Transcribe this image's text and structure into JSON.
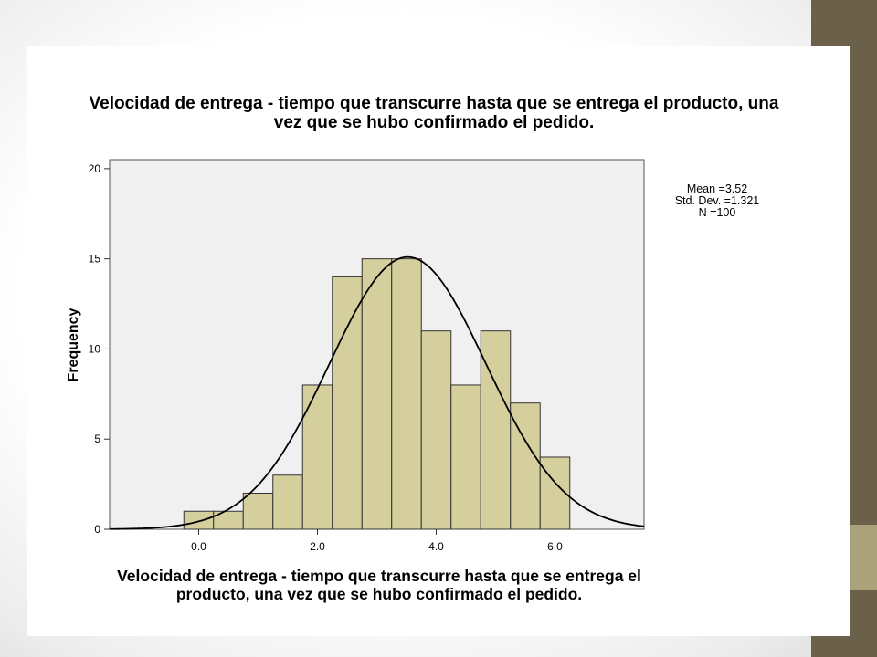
{
  "chart_data": {
    "type": "bar",
    "title": "Velocidad de entrega - tiempo que transcurre hasta que se entrega el producto, una vez que se hubo confirmado el pedido.",
    "xlabel": "Velocidad de entrega - tiempo que transcurre hasta que se entrega el producto, una vez que se hubo confirmado el pedido.",
    "ylabel": "Frequency",
    "bin_width": 0.5,
    "bins": [
      {
        "start": -0.25,
        "end": 0.25,
        "value": 1
      },
      {
        "start": 0.25,
        "end": 0.75,
        "value": 1
      },
      {
        "start": 0.75,
        "end": 1.25,
        "value": 2
      },
      {
        "start": 1.25,
        "end": 1.75,
        "value": 3
      },
      {
        "start": 1.75,
        "end": 2.25,
        "value": 8
      },
      {
        "start": 2.25,
        "end": 2.75,
        "value": 14
      },
      {
        "start": 2.75,
        "end": 3.25,
        "value": 15
      },
      {
        "start": 3.25,
        "end": 3.75,
        "value": 15
      },
      {
        "start": 3.75,
        "end": 4.25,
        "value": 11
      },
      {
        "start": 4.25,
        "end": 4.75,
        "value": 8
      },
      {
        "start": 4.75,
        "end": 5.25,
        "value": 11
      },
      {
        "start": 5.25,
        "end": 5.75,
        "value": 7
      },
      {
        "start": 5.75,
        "end": 6.25,
        "value": 4
      }
    ],
    "xlim": [
      -1.5,
      7.5
    ],
    "ylim": [
      0,
      20.5
    ],
    "xticks": [
      "0.0",
      "2.0",
      "4.0",
      "6.0"
    ],
    "xtick_values": [
      0,
      2,
      4,
      6
    ],
    "yticks": [
      "0",
      "5",
      "10",
      "15",
      "20"
    ],
    "ytick_values": [
      0,
      5,
      10,
      15,
      20
    ],
    "normal_curve": {
      "mean": 3.52,
      "std_dev": 1.321,
      "n": 100
    },
    "stats_labels": [
      "Mean =3.52",
      "Std. Dev. =1.321",
      "N =100"
    ],
    "grid": false,
    "colors": {
      "bar_fill": "#d4cf9c",
      "bar_stroke": "#333333",
      "plot_background": "#f0f0f0",
      "curve": "#000000"
    }
  },
  "decor": {
    "side_band_color": "#6b604a",
    "side_accent_color": "#aaa27b"
  }
}
